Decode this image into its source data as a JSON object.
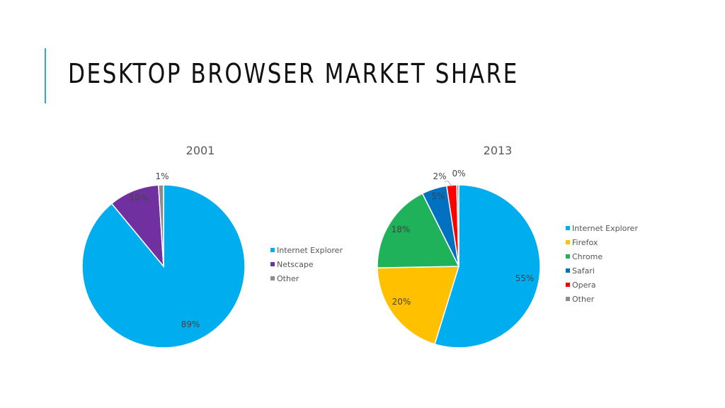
{
  "slide": {
    "title": "DESKTOP BROWSER MARKET SHARE"
  },
  "colors": {
    "accent_bar": "#3aa0d0",
    "title_text": "#111111"
  },
  "chart_data": [
    {
      "type": "pie",
      "title": "2001",
      "legend_position": "right",
      "slices": [
        {
          "label": "Internet Explorer",
          "value": 89,
          "display": "89%",
          "color": "#00adef"
        },
        {
          "label": "Netscape",
          "value": 10,
          "display": "10%",
          "color": "#7030a0"
        },
        {
          "label": "Other",
          "value": 1,
          "display": "1%",
          "color": "#8c8c8c"
        }
      ]
    },
    {
      "type": "pie",
      "title": "2013",
      "legend_position": "right",
      "slices": [
        {
          "label": "Internet Explorer",
          "value": 55,
          "display": "55%",
          "color": "#00adef"
        },
        {
          "label": "Firefox",
          "value": 20,
          "display": "20%",
          "color": "#ffc000"
        },
        {
          "label": "Chrome",
          "value": 18,
          "display": "18%",
          "color": "#1fb25a"
        },
        {
          "label": "Safari",
          "value": 5,
          "display": "5%",
          "color": "#0070c0"
        },
        {
          "label": "Opera",
          "value": 2,
          "display": "2%",
          "color": "#ff0000"
        },
        {
          "label": "Other",
          "value": 0.4,
          "display": "0%",
          "color": "#8c8c8c"
        }
      ]
    }
  ]
}
